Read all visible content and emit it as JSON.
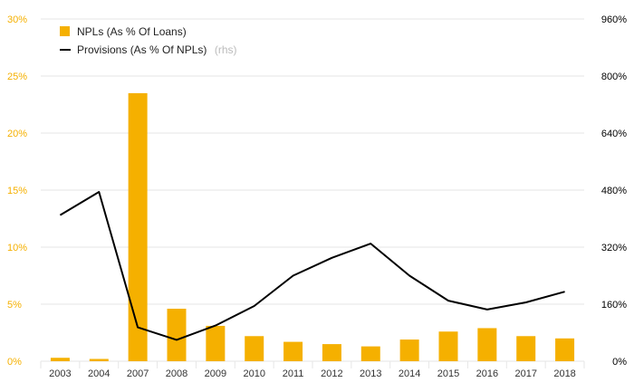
{
  "chart_data": {
    "type": "bar",
    "categories": [
      "2003",
      "2004",
      "2007",
      "2008",
      "2009",
      "2010",
      "2011",
      "2012",
      "2013",
      "2014",
      "2015",
      "2016",
      "2017",
      "2018"
    ],
    "series": [
      {
        "name": "NPLs (As % Of Loans)",
        "type": "bar",
        "axis": "left",
        "color": "#f5b000",
        "values": [
          0.3,
          0.2,
          23.5,
          4.6,
          3.1,
          2.2,
          1.7,
          1.5,
          1.3,
          1.9,
          2.6,
          2.9,
          2.2,
          2.0
        ]
      },
      {
        "name": "Provisions (As % Of NPLs)",
        "name_suffix": "(rhs)",
        "type": "line",
        "axis": "right",
        "color": "#000000",
        "values": [
          410,
          475,
          95,
          60,
          100,
          155,
          240,
          290,
          330,
          240,
          170,
          145,
          165,
          195
        ]
      }
    ],
    "y_left": {
      "ylim": [
        0,
        30
      ],
      "ticks": [
        "0%",
        "5%",
        "10%",
        "15%",
        "20%",
        "25%",
        "30%"
      ],
      "color": "#f5b000"
    },
    "y_right": {
      "ylim": [
        0,
        960
      ],
      "ticks": [
        "0%",
        "160%",
        "320%",
        "480%",
        "640%",
        "800%",
        "960%"
      ],
      "color": "#000000"
    },
    "grid": true,
    "legend": "top-left"
  }
}
